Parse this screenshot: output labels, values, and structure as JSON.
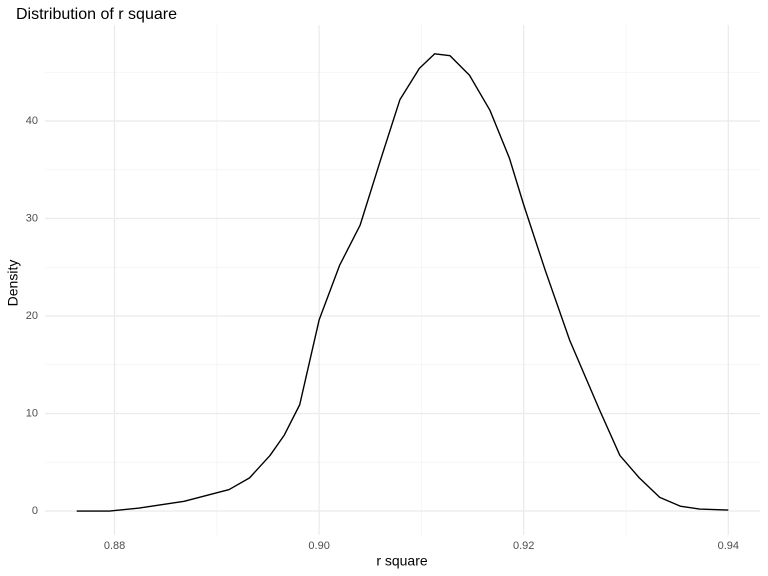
{
  "chart_data": {
    "type": "line",
    "title": "Distribution of r square",
    "x_label": "r square",
    "y_label": "Density",
    "x": [
      0.8763,
      0.8795,
      0.8824,
      0.8868,
      0.8912,
      0.8932,
      0.8952,
      0.8966,
      0.8981,
      0.9,
      0.902,
      0.904,
      0.906,
      0.9079,
      0.9098,
      0.9113,
      0.9128,
      0.9147,
      0.9167,
      0.9186,
      0.92,
      0.9221,
      0.9245,
      0.9274,
      0.9294,
      0.9313,
      0.9333,
      0.9353,
      0.9372,
      0.94
    ],
    "series": [
      {
        "color": "#000000",
        "values": [
          0.0,
          0.0,
          0.3,
          1.0,
          2.2,
          3.4,
          5.7,
          7.8,
          10.9,
          19.6,
          25.2,
          29.3,
          36.0,
          42.2,
          45.4,
          46.9,
          46.7,
          44.7,
          41.1,
          36.2,
          31.4,
          24.7,
          17.5,
          10.4,
          5.7,
          3.4,
          1.4,
          0.5,
          0.2,
          0.1
        ]
      }
    ],
    "xlim": [
      0.8732,
      0.9431
    ],
    "ylim": [
      -2.46,
      49.85
    ],
    "xticks": [
      {
        "value": 0.88,
        "label": "0.88"
      },
      {
        "value": 0.9,
        "label": "0.90"
      },
      {
        "value": 0.92,
        "label": "0.92"
      },
      {
        "value": 0.94,
        "label": "0.94"
      }
    ],
    "yticks": [
      0,
      10,
      20,
      30,
      40
    ],
    "x_minor_ticks": [
      0.89,
      0.91,
      0.93
    ],
    "y_minor_ticks": [
      5,
      15,
      25,
      35,
      45
    ],
    "grid": true
  }
}
